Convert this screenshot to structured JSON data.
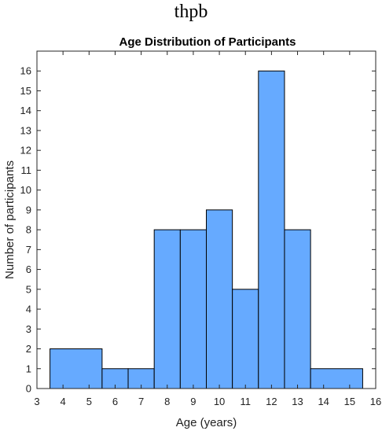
{
  "header": {
    "label": "thpb"
  },
  "chart_data": {
    "type": "bar",
    "title": "Age Distribution of Participants",
    "xlabel": "Age (years)",
    "ylabel": "Number of participants",
    "xlim": [
      3,
      16
    ],
    "ylim": [
      0,
      17
    ],
    "xticks": [
      3,
      4,
      5,
      6,
      7,
      8,
      9,
      10,
      11,
      12,
      13,
      14,
      15,
      16
    ],
    "yticks": [
      0,
      1,
      2,
      3,
      4,
      5,
      6,
      7,
      8,
      9,
      10,
      11,
      12,
      13,
      14,
      15,
      16
    ],
    "bins": [
      {
        "x0": 3.5,
        "x1": 5.5,
        "value": 2
      },
      {
        "x0": 5.5,
        "x1": 6.5,
        "value": 1
      },
      {
        "x0": 6.5,
        "x1": 7.5,
        "value": 1
      },
      {
        "x0": 7.5,
        "x1": 8.5,
        "value": 8
      },
      {
        "x0": 8.5,
        "x1": 9.5,
        "value": 8
      },
      {
        "x0": 9.5,
        "x1": 10.5,
        "value": 9
      },
      {
        "x0": 10.5,
        "x1": 11.5,
        "value": 5
      },
      {
        "x0": 11.5,
        "x1": 12.5,
        "value": 16
      },
      {
        "x0": 12.5,
        "x1": 13.5,
        "value": 8
      },
      {
        "x0": 13.5,
        "x1": 15.5,
        "value": 1
      }
    ],
    "bar_color": "#66aaff",
    "edge_color": "#000000",
    "grid": false
  }
}
